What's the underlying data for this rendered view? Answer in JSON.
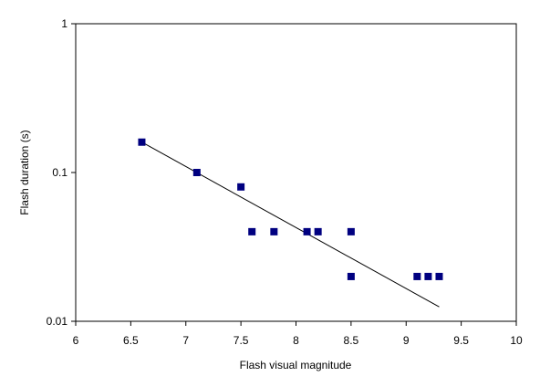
{
  "chart_data": {
    "type": "scatter",
    "title": "",
    "xlabel": "Flash visual magnitude",
    "ylabel": "Flash duration (s)",
    "xlim": [
      6,
      10
    ],
    "ylim": [
      0.01,
      1
    ],
    "yscale": "log",
    "x_ticks": [
      6,
      6.5,
      7,
      7.5,
      8,
      8.5,
      9,
      9.5,
      10
    ],
    "x_tick_labels": [
      "6",
      "6.5",
      "7",
      "7.5",
      "8",
      "8.5",
      "9",
      "9.5",
      "10"
    ],
    "y_ticks": [
      0.01,
      0.1,
      1
    ],
    "y_tick_labels": [
      "0.01",
      "0.1",
      "1"
    ],
    "grid": false,
    "legend": "none",
    "marker_color": "#000080",
    "trendline_color": "#000000",
    "series": [
      {
        "x": [
          6.6,
          7.1,
          7.5,
          7.6,
          7.8,
          8.1,
          8.2,
          8.5,
          8.5,
          9.1,
          9.2,
          9.3
        ],
        "y": [
          0.16,
          0.1,
          0.08,
          0.04,
          0.04,
          0.04,
          0.04,
          0.04,
          0.02,
          0.02,
          0.02,
          0.02
        ]
      }
    ],
    "trendline": {
      "x": [
        6.6,
        9.3
      ],
      "y": [
        0.16,
        0.0125
      ]
    }
  }
}
